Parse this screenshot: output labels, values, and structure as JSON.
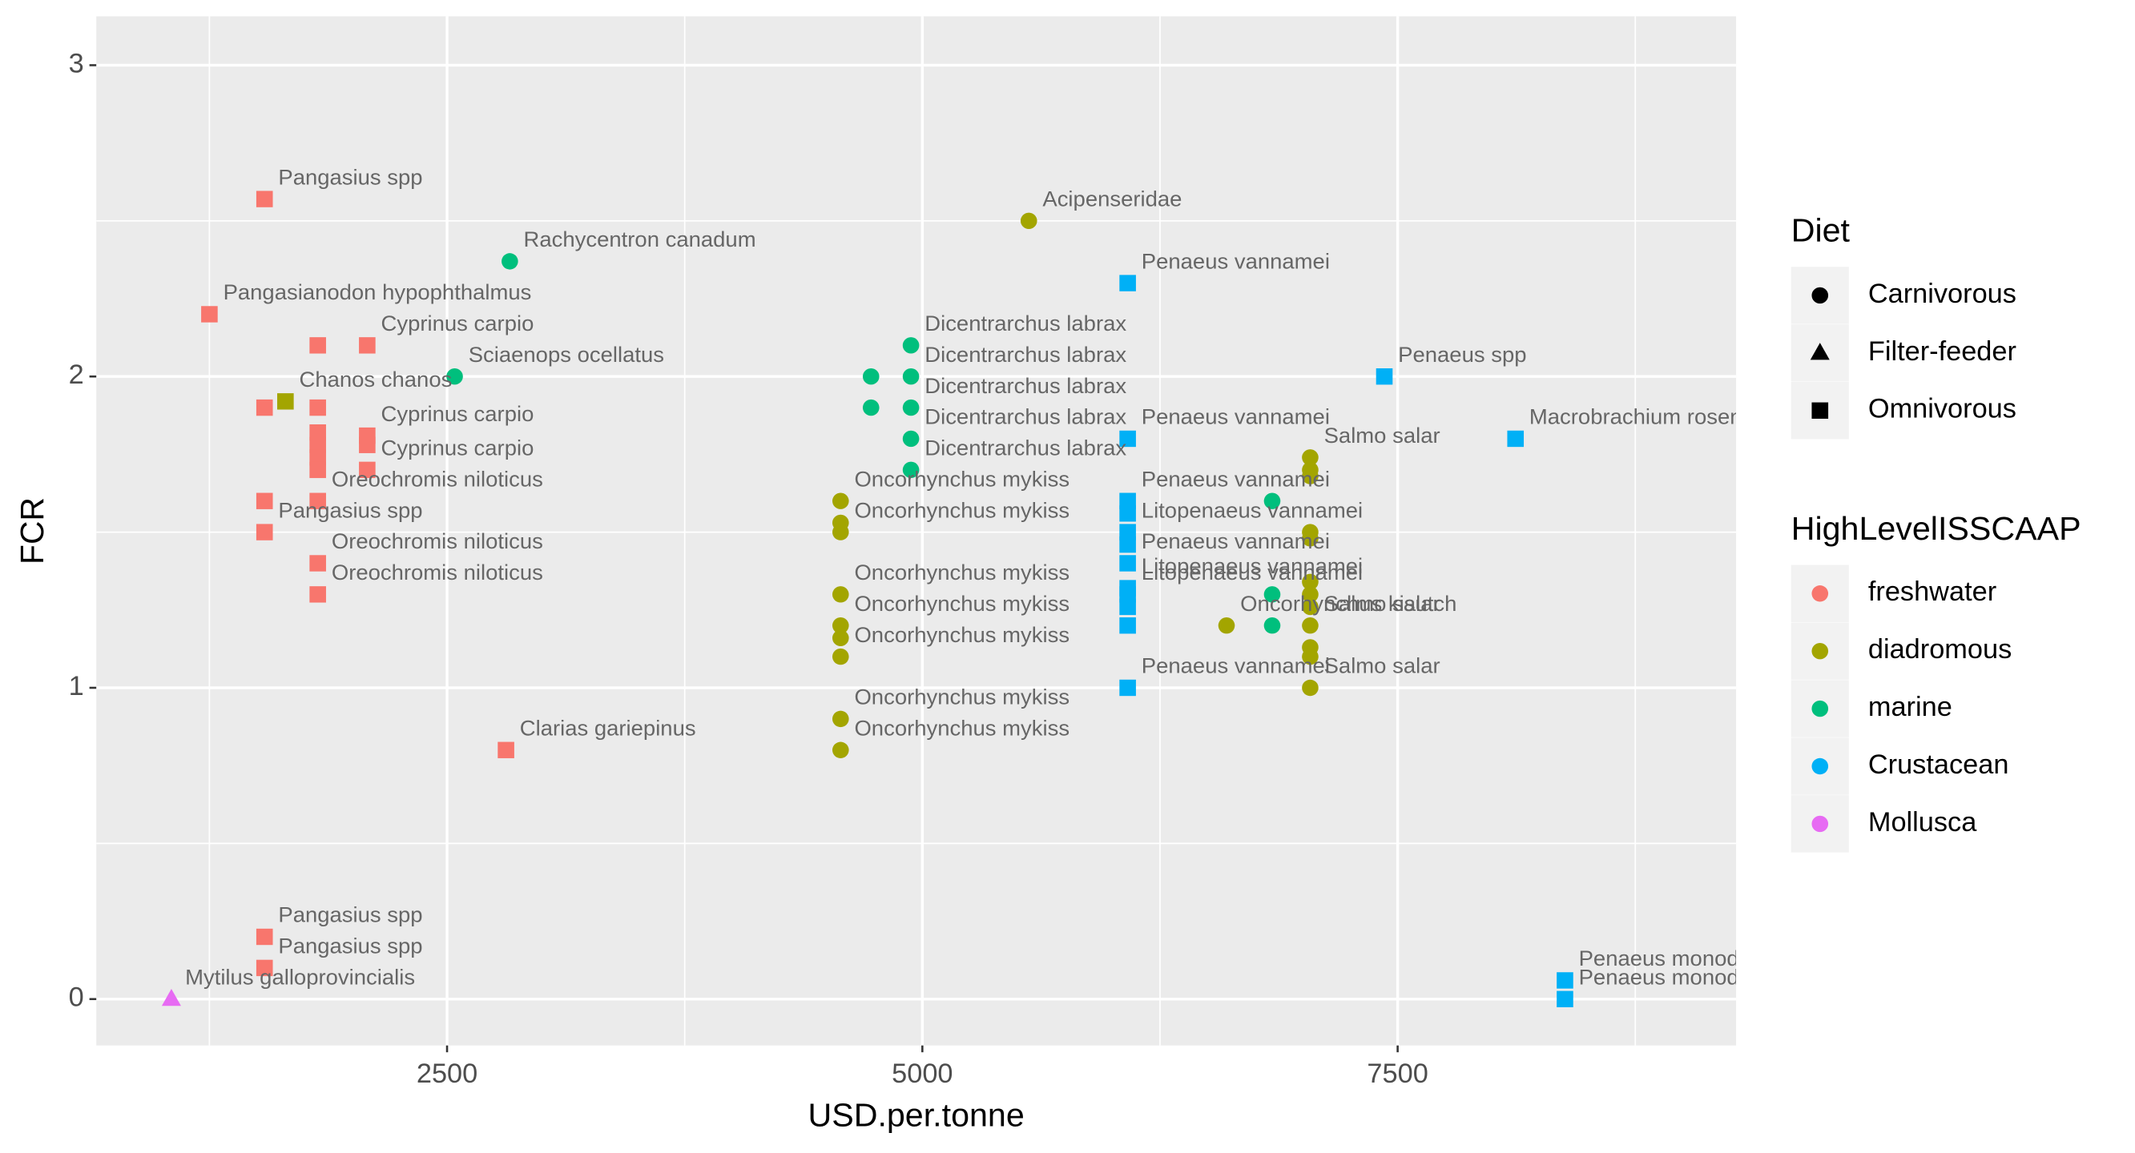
{
  "chart_data": {
    "type": "scatter",
    "x_label": "USD.per.tonne",
    "y_label": "FCR",
    "xlim": [
      655,
      9280
    ],
    "ylim": [
      -0.149,
      3.157
    ],
    "xticks": [
      2500,
      5000,
      7500
    ],
    "yticks": [
      0,
      1,
      2,
      3
    ],
    "x_minor_ticks": [
      1250,
      3750,
      6250,
      8750
    ],
    "y_minor_ticks": [
      0.5,
      1.5,
      2.5
    ],
    "grid": true,
    "shape_legend": {
      "title": "Diet",
      "entries": [
        {
          "name": "Carnivorous",
          "shape": "circle"
        },
        {
          "name": "Filter-feeder",
          "shape": "triangle"
        },
        {
          "name": "Omnivorous",
          "shape": "square"
        }
      ]
    },
    "color_legend_title": "HighLevelISSCAAP",
    "series": [
      {
        "name": "freshwater",
        "color": "#F8766D",
        "x": [
          1540,
          1250,
          1820,
          2080,
          1540,
          1820,
          1820,
          1820,
          1820,
          1820,
          2080,
          2080,
          2080,
          1540,
          1820,
          1540,
          1820,
          1820,
          2810,
          1540,
          1540
        ],
        "y": [
          2.57,
          2.2,
          2.1,
          2.1,
          1.9,
          1.9,
          1.82,
          1.78,
          1.74,
          1.7,
          1.81,
          1.78,
          1.7,
          1.6,
          1.6,
          1.5,
          1.4,
          1.3,
          0.8,
          0.2,
          0.1
        ],
        "diet": [
          "Omnivorous",
          "Omnivorous",
          "Omnivorous",
          "Omnivorous",
          "Omnivorous",
          "Omnivorous",
          "Omnivorous",
          "Omnivorous",
          "Omnivorous",
          "Omnivorous",
          "Omnivorous",
          "Omnivorous",
          "Omnivorous",
          "Omnivorous",
          "Omnivorous",
          "Omnivorous",
          "Omnivorous",
          "Omnivorous",
          "Omnivorous",
          "Omnivorous",
          "Omnivorous"
        ],
        "labels": [
          "Pangasius spp",
          "Pangasianodon hypophthalmus",
          null,
          "Cyprinus carpio",
          null,
          null,
          null,
          null,
          null,
          null,
          "Cyprinus carpio",
          null,
          "Cyprinus carpio",
          null,
          "Oreochromis niloticus",
          "Pangasius spp",
          "Oreochromis niloticus",
          "Oreochromis niloticus",
          "Clarias gariepinus",
          "Pangasius spp",
          "Pangasius spp"
        ]
      },
      {
        "name": "diadromous",
        "color": "#A3A500",
        "x": [
          1650,
          5560,
          4570,
          4570,
          4570,
          4570,
          4570,
          4570,
          4570,
          4570,
          4570,
          6600,
          7040,
          7040,
          7040,
          7040,
          7040,
          7040,
          7040,
          7040,
          7040,
          7040,
          7040,
          7040
        ],
        "y": [
          1.92,
          2.5,
          1.6,
          1.53,
          1.5,
          1.3,
          1.2,
          1.16,
          1.1,
          0.9,
          0.8,
          1.2,
          1.74,
          1.7,
          1.68,
          1.5,
          1.48,
          1.34,
          1.3,
          1.26,
          1.2,
          1.13,
          1.1,
          1.0
        ],
        "diet": [
          "Omnivorous",
          "Carnivorous",
          "Carnivorous",
          "Carnivorous",
          "Carnivorous",
          "Carnivorous",
          "Carnivorous",
          "Carnivorous",
          "Carnivorous",
          "Carnivorous",
          "Carnivorous",
          "Carnivorous",
          "Carnivorous",
          "Carnivorous",
          "Carnivorous",
          "Carnivorous",
          "Carnivorous",
          "Carnivorous",
          "Carnivorous",
          "Carnivorous",
          "Carnivorous",
          "Carnivorous",
          "Carnivorous",
          "Carnivorous"
        ],
        "labels": [
          "Chanos chanos",
          "Acipenseridae",
          "Oncorhynchus mykiss",
          null,
          "Oncorhynchus mykiss",
          "Oncorhynchus mykiss",
          "Oncorhynchus mykiss",
          null,
          "Oncorhynchus mykiss",
          "Oncorhynchus mykiss",
          "Oncorhynchus mykiss",
          "Oncorhynchus kisutch",
          "Salmo salar",
          null,
          null,
          null,
          null,
          null,
          null,
          null,
          "Salmo salar",
          null,
          null,
          "Salmo salar"
        ]
      },
      {
        "name": "marine",
        "color": "#00BF7D",
        "x": [
          2830,
          2540,
          4730,
          4730,
          4940,
          4940,
          4940,
          4940,
          4940,
          6840,
          6840,
          6840
        ],
        "y": [
          2.37,
          2.0,
          2.0,
          1.9,
          2.1,
          2.0,
          1.9,
          1.8,
          1.7,
          1.6,
          1.3,
          1.2
        ],
        "diet": [
          "Carnivorous",
          "Carnivorous",
          "Carnivorous",
          "Carnivorous",
          "Carnivorous",
          "Carnivorous",
          "Carnivorous",
          "Carnivorous",
          "Carnivorous",
          "Carnivorous",
          "Carnivorous",
          "Carnivorous"
        ],
        "labels": [
          "Rachycentron canadum",
          "Sciaenops ocellatus",
          null,
          null,
          "Dicentrarchus labrax",
          "Dicentrarchus labrax",
          "Dicentrarchus labrax",
          "Dicentrarchus labrax",
          "Dicentrarchus labrax",
          null,
          null,
          null
        ]
      },
      {
        "name": "Crustacean",
        "color": "#00B0F6",
        "x": [
          6080,
          7430,
          8120,
          6080,
          6080,
          6080,
          6080,
          6080,
          6080,
          6080,
          6080,
          6080,
          6080,
          6080,
          8380,
          8380
        ],
        "y": [
          2.3,
          2.0,
          1.8,
          1.8,
          1.6,
          1.56,
          1.5,
          1.46,
          1.4,
          1.32,
          1.3,
          1.26,
          1.2,
          1.0,
          0.06,
          0.0
        ],
        "diet": [
          "Omnivorous",
          "Omnivorous",
          "Omnivorous",
          "Omnivorous",
          "Omnivorous",
          "Omnivorous",
          "Omnivorous",
          "Omnivorous",
          "Omnivorous",
          "Omnivorous",
          "Omnivorous",
          "Omnivorous",
          "Omnivorous",
          "Omnivorous",
          "Omnivorous",
          "Omnivorous"
        ],
        "labels": [
          "Penaeus vannamei",
          "Penaeus spp",
          "Macrobrachium rosenberg",
          "Penaeus vannamei",
          "Penaeus vannamei",
          null,
          "Litopenaeus vannamei",
          null,
          "Penaeus vannamei",
          "Litopenaeus vannamei",
          "Litopenaeus vannamei",
          null,
          null,
          "Penaeus vannamei",
          "Penaeus monodo",
          "Penaeus monodo"
        ]
      },
      {
        "name": "Mollusca",
        "color": "#E76BF3",
        "x": [
          1050
        ],
        "y": [
          0.0
        ],
        "diet": [
          "Filter-feeder"
        ],
        "labels": [
          "Mytilus galloprovincialis"
        ]
      }
    ]
  }
}
